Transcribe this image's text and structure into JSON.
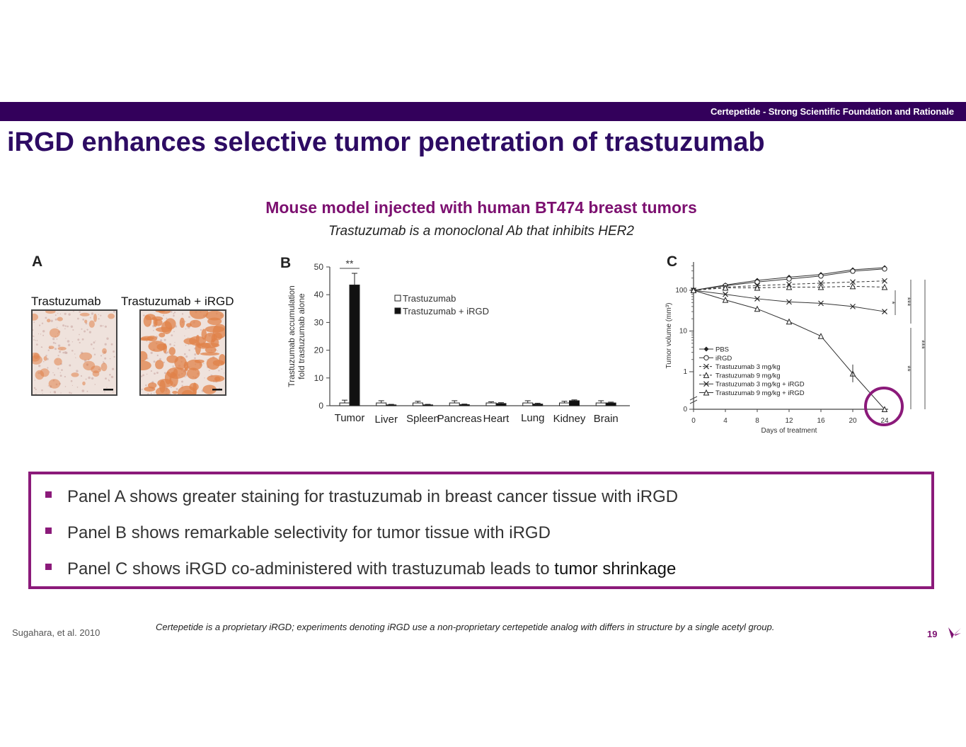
{
  "header": {
    "band_text": "Certepetide - Strong Scientific Foundation and Rationale",
    "title": "iRGD enhances selective tumor penetration of trastuzumab"
  },
  "subheading": "Mouse model injected with human BT474 breast tumors",
  "subnote": "Trastuzumab is a monoclonal Ab that inhibits HER2",
  "panel_a": {
    "letter": "A",
    "labels": [
      "Trastuzumab",
      "Trastuzumab + iRGD"
    ]
  },
  "panel_b": {
    "letter": "B",
    "chart_data": {
      "type": "bar",
      "ylabel": "Trastuzumab accumulation fold trastuzumab alone",
      "ylim": [
        0,
        50
      ],
      "yticks": [
        "0",
        "10",
        "20",
        "30",
        "40",
        "50"
      ],
      "categories": [
        "Tumor",
        "Liver",
        "Spleen",
        "Pancreas",
        "Heart",
        "Lung",
        "Kidney",
        "Brain"
      ],
      "series": [
        {
          "name": "Trastuzumab",
          "values": [
            1,
            1,
            1,
            1,
            1,
            1,
            1,
            1
          ],
          "errors": [
            1,
            0.8,
            0.6,
            0.8,
            0.4,
            0.8,
            0.6,
            0.8
          ]
        },
        {
          "name": "Trastuzumab + iRGD",
          "values": [
            43.5,
            0.3,
            0.3,
            0.4,
            0.8,
            0.6,
            1.8,
            1.0
          ],
          "errors": [
            4.2,
            0.2,
            0.2,
            0.2,
            0.3,
            0.3,
            0.3,
            0.3
          ]
        }
      ],
      "annotations": [
        "**"
      ],
      "legend_position": "top-right"
    }
  },
  "panel_c": {
    "letter": "C",
    "chart_data": {
      "type": "line",
      "xlabel": "Days of treatment",
      "ylabel": "Tumor volume (mm³)",
      "yscale": "log",
      "yticks": [
        "0",
        "1",
        "10",
        "100"
      ],
      "xticks": [
        "0",
        "4",
        "8",
        "12",
        "16",
        "20",
        "24"
      ],
      "x": [
        0,
        4,
        8,
        12,
        16,
        20,
        24
      ],
      "series": [
        {
          "name": "PBS",
          "marker": "diamond",
          "dash": false,
          "values": [
            100,
            135,
            175,
            210,
            245,
            320,
            360
          ]
        },
        {
          "name": "iRGD",
          "marker": "circle",
          "dash": false,
          "values": [
            100,
            130,
            160,
            190,
            225,
            295,
            335
          ]
        },
        {
          "name": "Trastuzumab 3 mg/kg",
          "marker": "x",
          "dash": true,
          "values": [
            100,
            120,
            130,
            140,
            150,
            160,
            170
          ]
        },
        {
          "name": "Trastuzumab 9 mg/kg",
          "marker": "triangle",
          "dash": true,
          "values": [
            100,
            115,
            115,
            120,
            120,
            125,
            120
          ]
        },
        {
          "name": "Trastuzumab 3 mg/kg + iRGD",
          "marker": "x",
          "dash": false,
          "values": [
            100,
            80,
            62,
            52,
            48,
            40,
            30
          ]
        },
        {
          "name": "Trastuzumab 9 mg/kg + iRGD",
          "marker": "triangle",
          "dash": false,
          "values": [
            100,
            58,
            35,
            17,
            7.5,
            0.9,
            0
          ]
        }
      ],
      "significance": [
        "*",
        "***",
        "**",
        "***"
      ],
      "legend_position": "bottom-left"
    }
  },
  "bullets": [
    {
      "text": "Panel A shows greater staining for trastuzumab in breast cancer tissue with iRGD",
      "emphasis": ""
    },
    {
      "text": "Panel B shows remarkable selectivity for tumor tissue with iRGD",
      "emphasis": ""
    },
    {
      "text": "Panel C shows iRGD co-administered with trastuzumab leads to ",
      "emphasis": "tumor shrinkage"
    }
  ],
  "footnote": "Certepetide is a proprietary iRGD; experiments denoting iRGD use a non-proprietary certepetide analog with differs in structure by a single acetyl group.",
  "citation": "Sugahara, et al. 2010",
  "page_number": "19",
  "colors": {
    "band": "#33005b",
    "title": "#2d0b63",
    "accent": "#8b1a7a",
    "stain": "#e0824a"
  }
}
